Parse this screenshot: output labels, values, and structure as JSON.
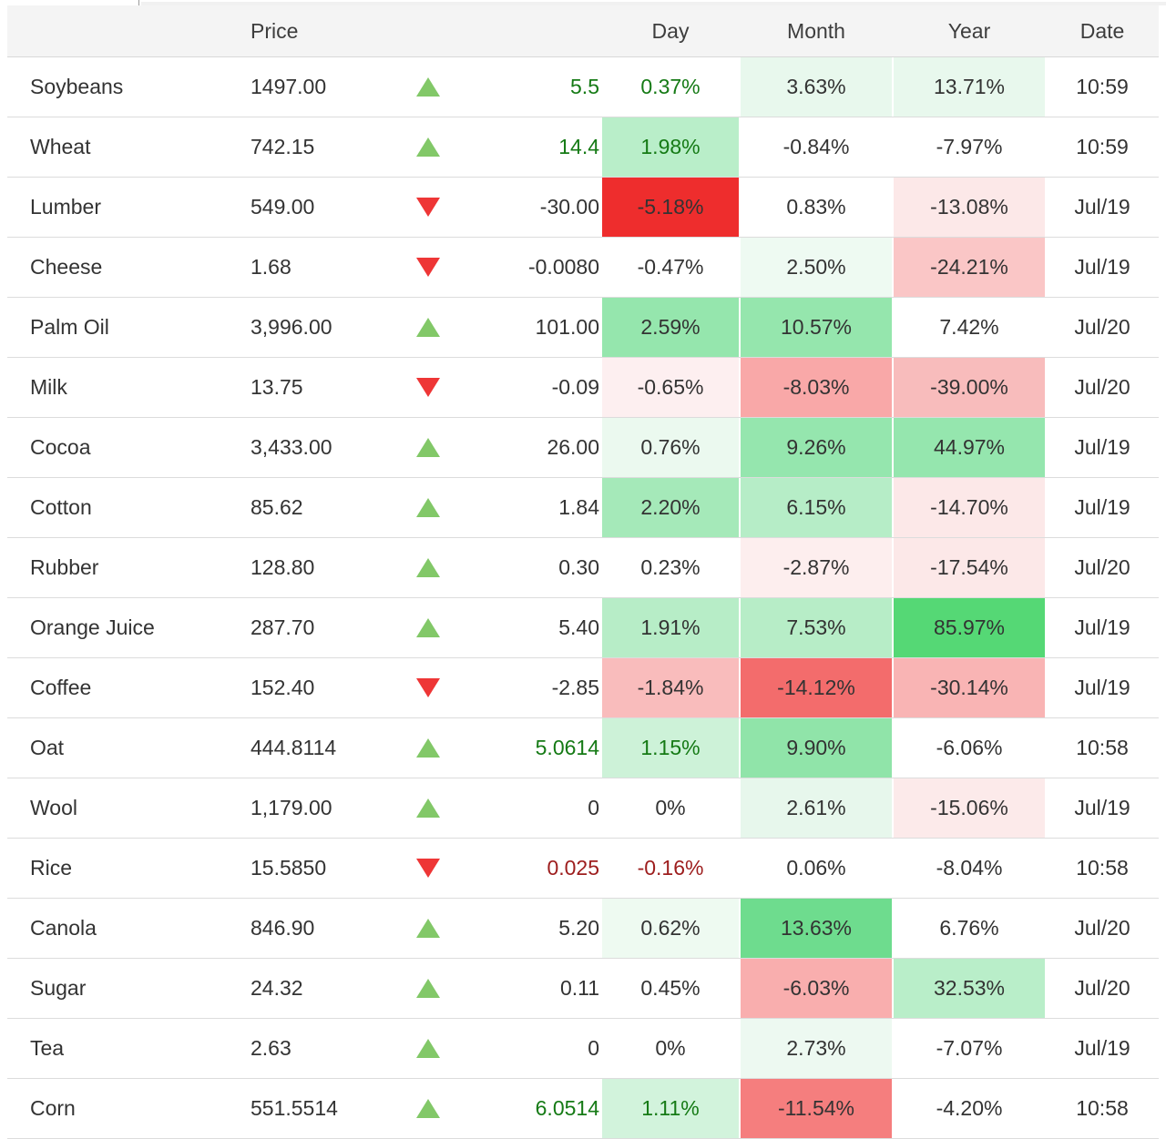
{
  "colors": {
    "green_text": "#157a15",
    "red_text": "#9d1d1d",
    "default_text": "#333333",
    "up_arrow": "#82c868",
    "down_arrow": "#ee3636",
    "header_bg": "#f4f4f4"
  },
  "table": {
    "headers": {
      "price": "Price",
      "day": "Day",
      "month": "Month",
      "year": "Year",
      "date": "Date"
    },
    "rows": [
      {
        "name": "Soybeans",
        "price": "1497.00",
        "direction": "up",
        "change": "5.5",
        "change_color": "#157a15",
        "day": {
          "text": "0.37%",
          "bg": "",
          "color": "#157a15"
        },
        "month": {
          "text": "3.63%",
          "bg": "#e8f8ed",
          "color": ""
        },
        "year": {
          "text": "13.71%",
          "bg": "#e8f8ed",
          "color": ""
        },
        "date": "10:59"
      },
      {
        "name": "Wheat",
        "price": "742.15",
        "direction": "up",
        "change": "14.4",
        "change_color": "#157a15",
        "day": {
          "text": "1.98%",
          "bg": "#b9eec9",
          "color": "#157a15"
        },
        "month": {
          "text": "-0.84%",
          "bg": "",
          "color": ""
        },
        "year": {
          "text": "-7.97%",
          "bg": "",
          "color": ""
        },
        "date": "10:59"
      },
      {
        "name": "Lumber",
        "price": "549.00",
        "direction": "down",
        "change": "-30.00",
        "change_color": "",
        "day": {
          "text": "-5.18%",
          "bg": "#ee2d2d",
          "color": ""
        },
        "month": {
          "text": "0.83%",
          "bg": "",
          "color": ""
        },
        "year": {
          "text": "-13.08%",
          "bg": "#fce8e8",
          "color": ""
        },
        "date": "Jul/19"
      },
      {
        "name": "Cheese",
        "price": "1.68",
        "direction": "down",
        "change": "-0.0080",
        "change_color": "",
        "day": {
          "text": "-0.47%",
          "bg": "",
          "color": ""
        },
        "month": {
          "text": "2.50%",
          "bg": "#eefaf2",
          "color": ""
        },
        "year": {
          "text": "-24.21%",
          "bg": "#fac6c6",
          "color": ""
        },
        "date": "Jul/19"
      },
      {
        "name": "Palm Oil",
        "price": "3,996.00",
        "direction": "up",
        "change": "101.00",
        "change_color": "",
        "day": {
          "text": "2.59%",
          "bg": "#95e6ad",
          "color": ""
        },
        "month": {
          "text": "10.57%",
          "bg": "#95e6ad",
          "color": ""
        },
        "year": {
          "text": "7.42%",
          "bg": "",
          "color": ""
        },
        "date": "Jul/20"
      },
      {
        "name": "Milk",
        "price": "13.75",
        "direction": "down",
        "change": "-0.09",
        "change_color": "",
        "day": {
          "text": "-0.65%",
          "bg": "#fdeff0",
          "color": ""
        },
        "month": {
          "text": "-8.03%",
          "bg": "#f9a8a8",
          "color": ""
        },
        "year": {
          "text": "-39.00%",
          "bg": "#f8bcbc",
          "color": ""
        },
        "date": "Jul/20"
      },
      {
        "name": "Cocoa",
        "price": "3,433.00",
        "direction": "up",
        "change": "26.00",
        "change_color": "",
        "day": {
          "text": "0.76%",
          "bg": "#ebf9ef",
          "color": ""
        },
        "month": {
          "text": "9.26%",
          "bg": "#95e6ae",
          "color": ""
        },
        "year": {
          "text": "44.97%",
          "bg": "#95e6ae",
          "color": ""
        },
        "date": "Jul/19"
      },
      {
        "name": "Cotton",
        "price": "85.62",
        "direction": "up",
        "change": "1.84",
        "change_color": "",
        "day": {
          "text": "2.20%",
          "bg": "#a5e9b9",
          "color": ""
        },
        "month": {
          "text": "6.15%",
          "bg": "#b6edc7",
          "color": ""
        },
        "year": {
          "text": "-14.70%",
          "bg": "#fce8e8",
          "color": ""
        },
        "date": "Jul/19"
      },
      {
        "name": "Rubber",
        "price": "128.80",
        "direction": "up",
        "change": "0.30",
        "change_color": "",
        "day": {
          "text": "0.23%",
          "bg": "",
          "color": ""
        },
        "month": {
          "text": "-2.87%",
          "bg": "#fdeeee",
          "color": ""
        },
        "year": {
          "text": "-17.54%",
          "bg": "#fce8e8",
          "color": ""
        },
        "date": "Jul/20"
      },
      {
        "name": "Orange Juice",
        "price": "287.70",
        "direction": "up",
        "change": "5.40",
        "change_color": "",
        "day": {
          "text": "1.91%",
          "bg": "#b7edc7",
          "color": ""
        },
        "month": {
          "text": "7.53%",
          "bg": "#b7edc7",
          "color": ""
        },
        "year": {
          "text": "85.97%",
          "bg": "#55d875",
          "color": ""
        },
        "date": "Jul/19"
      },
      {
        "name": "Coffee",
        "price": "152.40",
        "direction": "down",
        "change": "-2.85",
        "change_color": "",
        "day": {
          "text": "-1.84%",
          "bg": "#f9bcbc",
          "color": ""
        },
        "month": {
          "text": "-14.12%",
          "bg": "#f36c6c",
          "color": ""
        },
        "year": {
          "text": "-30.14%",
          "bg": "#f9b4b4",
          "color": ""
        },
        "date": "Jul/19"
      },
      {
        "name": "Oat",
        "price": "444.8114",
        "direction": "up",
        "change": "5.0614",
        "change_color": "#157a15",
        "day": {
          "text": "1.15%",
          "bg": "#cdf2d8",
          "color": "#157a15"
        },
        "month": {
          "text": "9.90%",
          "bg": "#90e4a9",
          "color": ""
        },
        "year": {
          "text": "-6.06%",
          "bg": "",
          "color": ""
        },
        "date": "10:58"
      },
      {
        "name": "Wool",
        "price": "1,179.00",
        "direction": "up",
        "change": "0",
        "change_color": "",
        "day": {
          "text": "0%",
          "bg": "",
          "color": ""
        },
        "month": {
          "text": "2.61%",
          "bg": "#e7f7ec",
          "color": ""
        },
        "year": {
          "text": "-15.06%",
          "bg": "#fceaea",
          "color": ""
        },
        "date": "Jul/19"
      },
      {
        "name": "Rice",
        "price": "15.5850",
        "direction": "down",
        "change": "0.025",
        "change_color": "#9d1d1d",
        "day": {
          "text": "-0.16%",
          "bg": "",
          "color": "#9d1d1d"
        },
        "month": {
          "text": "0.06%",
          "bg": "",
          "color": ""
        },
        "year": {
          "text": "-8.04%",
          "bg": "",
          "color": ""
        },
        "date": "10:58"
      },
      {
        "name": "Canola",
        "price": "846.90",
        "direction": "up",
        "change": "5.20",
        "change_color": "",
        "day": {
          "text": "0.62%",
          "bg": "#eefaf1",
          "color": ""
        },
        "month": {
          "text": "13.63%",
          "bg": "#6edc8e",
          "color": ""
        },
        "year": {
          "text": "6.76%",
          "bg": "",
          "color": ""
        },
        "date": "Jul/20"
      },
      {
        "name": "Sugar",
        "price": "24.32",
        "direction": "up",
        "change": "0.11",
        "change_color": "",
        "day": {
          "text": "0.45%",
          "bg": "",
          "color": ""
        },
        "month": {
          "text": "-6.03%",
          "bg": "#f9aeae",
          "color": ""
        },
        "year": {
          "text": "32.53%",
          "bg": "#b9eec9",
          "color": ""
        },
        "date": "Jul/20"
      },
      {
        "name": "Tea",
        "price": "2.63",
        "direction": "up",
        "change": "0",
        "change_color": "",
        "day": {
          "text": "0%",
          "bg": "",
          "color": ""
        },
        "month": {
          "text": "2.73%",
          "bg": "#edf9f1",
          "color": ""
        },
        "year": {
          "text": "-7.07%",
          "bg": "",
          "color": ""
        },
        "date": "Jul/19"
      },
      {
        "name": "Corn",
        "price": "551.5514",
        "direction": "up",
        "change": "6.0514",
        "change_color": "#157a15",
        "day": {
          "text": "1.11%",
          "bg": "#d2f3dc",
          "color": "#157a15"
        },
        "month": {
          "text": "-11.54%",
          "bg": "#f57e7e",
          "color": ""
        },
        "year": {
          "text": "-4.20%",
          "bg": "",
          "color": ""
        },
        "date": "10:58"
      }
    ]
  }
}
